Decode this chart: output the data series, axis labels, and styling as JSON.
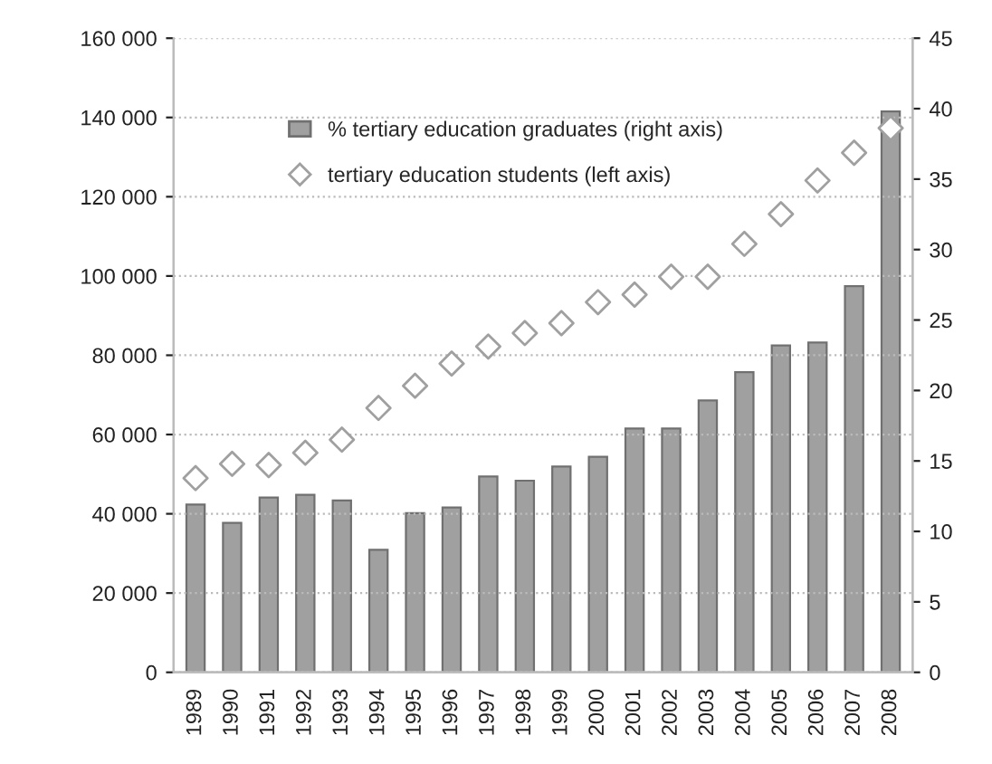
{
  "chart_data": {
    "type": "bar",
    "categories": [
      "1989",
      "1990",
      "1991",
      "1992",
      "1993",
      "1994",
      "1995",
      "1996",
      "1997",
      "1998",
      "1999",
      "2000",
      "2001",
      "2002",
      "2003",
      "2004",
      "2005",
      "2006",
      "2007",
      "2008"
    ],
    "series": [
      {
        "name": "% tertiary education graduates (right axis)",
        "axis": "y2",
        "color": "#a0a0a0",
        "values": [
          11.9,
          10.6,
          12.4,
          12.6,
          12.2,
          8.7,
          11.3,
          11.7,
          13.9,
          13.6,
          14.6,
          15.3,
          17.3,
          17.3,
          19.3,
          21.3,
          23.2,
          23.4,
          27.4,
          39.8
        ]
      },
      {
        "name": "tertiary education students (left axis)",
        "type": "scatter",
        "color": "#a0a0a0",
        "values": [
          49000,
          52600,
          52300,
          55400,
          58700,
          66700,
          72300,
          77900,
          82200,
          85600,
          88100,
          93400,
          95300,
          99800,
          99800,
          108100,
          115600,
          124100,
          131100,
          137300
        ]
      }
    ],
    "ylim": [
      0,
      160000
    ],
    "yticks": [
      {
        "value": 0,
        "label": "0"
      },
      {
        "value": 20000,
        "label": "20 000"
      },
      {
        "value": 40000,
        "label": "40 000"
      },
      {
        "value": 60000,
        "label": "60 000"
      },
      {
        "value": 80000,
        "label": "80 000"
      },
      {
        "value": 100000,
        "label": "100 000"
      },
      {
        "value": 120000,
        "label": "120 000"
      },
      {
        "value": 140000,
        "label": "140 000"
      },
      {
        "value": 160000,
        "label": "160 000"
      }
    ],
    "y2lim": [
      0,
      45
    ],
    "y2ticks": [
      0,
      5,
      10,
      15,
      20,
      25,
      30,
      35,
      40,
      45
    ],
    "grid": "y",
    "legend": "top",
    "marker": "diamond"
  }
}
